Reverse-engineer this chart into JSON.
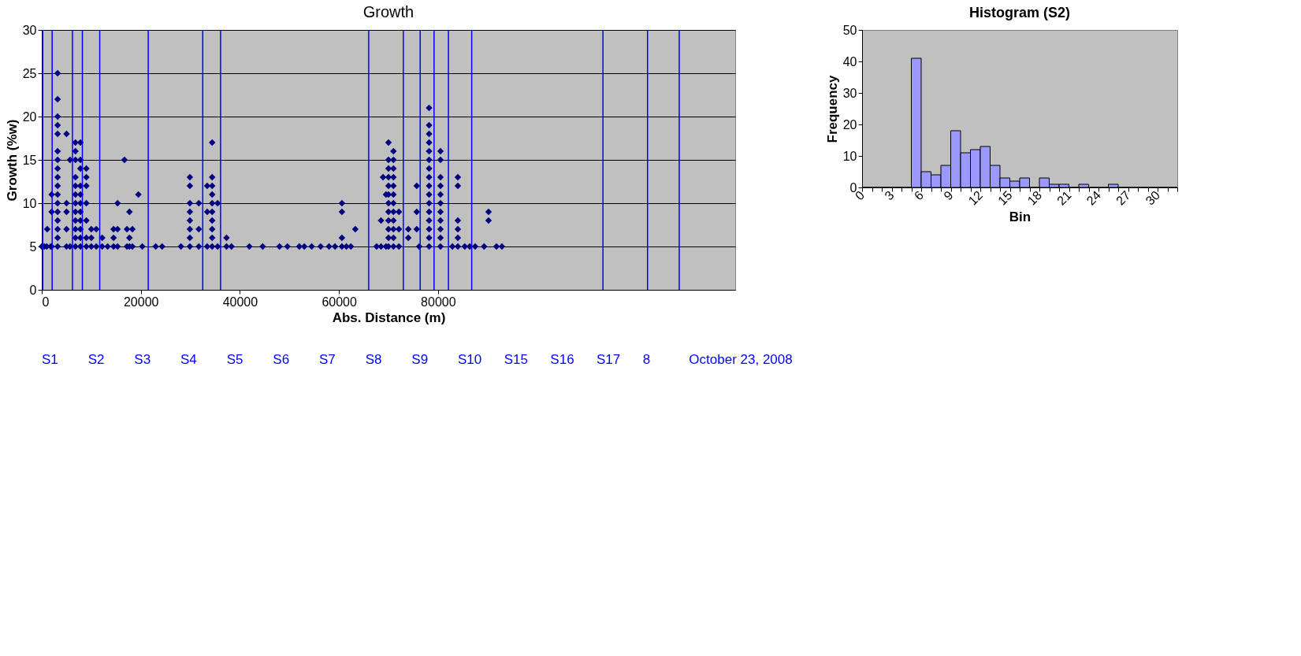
{
  "chart_data": [
    {
      "type": "scatter",
      "title": "Growth",
      "xlabel": "Abs. Distance (m)",
      "ylabel": "Growth (%w)",
      "xlim": [
        0,
        140000
      ],
      "xticks": [
        0,
        20000,
        40000,
        60000,
        80000
      ],
      "ylim": [
        0,
        30
      ],
      "yticks": [
        0,
        5,
        10,
        15,
        20,
        25,
        30
      ],
      "grid": "y",
      "legend": false,
      "marker": "diamond",
      "series": [
        {
          "color": "#000080",
          "x": [
            0,
            500,
            1000,
            1100,
            1800,
            2000,
            2000,
            2000,
            3200,
            3200,
            3200,
            3200,
            3200,
            3200,
            3200,
            3200,
            3200,
            3200,
            3200,
            3200,
            3200,
            3200,
            3200,
            3200,
            3200,
            5000,
            5000,
            5000,
            5000,
            5000,
            5700,
            5700,
            6800,
            6800,
            6800,
            6800,
            6800,
            6800,
            6800,
            6800,
            6800,
            6800,
            6800,
            6800,
            7800,
            7800,
            7800,
            7800,
            7800,
            7800,
            7800,
            7800,
            7800,
            7800,
            7800,
            9000,
            9000,
            9000,
            9000,
            9000,
            9000,
            9000,
            10000,
            10000,
            10000,
            11000,
            11000,
            12200,
            12200,
            13300,
            14500,
            14500,
            14500,
            15300,
            15300,
            15300,
            16700,
            17200,
            17200,
            17700,
            17700,
            17700,
            18300,
            18300,
            19500,
            20300,
            23000,
            24300,
            28100,
            29900,
            29900,
            29900,
            29900,
            29900,
            29900,
            29900,
            29900,
            31700,
            31700,
            31700,
            33400,
            33400,
            33400,
            34400,
            34400,
            34400,
            34400,
            34400,
            34400,
            34400,
            34400,
            34400,
            34400,
            35500,
            35500,
            37300,
            37300,
            38300,
            41900,
            44600,
            48000,
            49600,
            52000,
            53000,
            54500,
            56300,
            58000,
            59200,
            60600,
            60600,
            60600,
            60600,
            61500,
            62400,
            63300,
            67600,
            68500,
            68500,
            68900,
            69500,
            69500,
            70000,
            70000,
            70000,
            70000,
            70000,
            70000,
            70000,
            70000,
            70000,
            70000,
            70000,
            70000,
            71000,
            71000,
            71000,
            71000,
            71000,
            71000,
            71000,
            71000,
            71000,
            71000,
            71000,
            71000,
            72100,
            72100,
            72100,
            74000,
            74000,
            75700,
            75700,
            75700,
            76200,
            78200,
            78200,
            78200,
            78200,
            78200,
            78200,
            78200,
            78200,
            78200,
            78200,
            78200,
            78200,
            78200,
            78200,
            78200,
            78200,
            80500,
            80500,
            80500,
            80500,
            80500,
            80500,
            80500,
            80500,
            80500,
            80500,
            80500,
            82900,
            84000,
            84000,
            84000,
            84000,
            84000,
            84000,
            85400,
            86400,
            87500,
            89300,
            90200,
            90200,
            91800,
            92900
          ],
          "values": [
            5,
            5,
            5,
            7,
            5,
            11,
            9,
            5,
            25,
            22,
            20,
            19,
            18,
            16,
            15,
            14,
            13,
            12,
            11,
            10,
            9,
            8,
            7,
            6,
            5,
            18,
            10,
            9,
            7,
            5,
            15,
            5,
            17,
            16,
            15,
            13,
            12,
            11,
            10,
            9,
            8,
            7,
            6,
            5,
            17,
            15,
            14,
            12,
            11,
            10,
            9,
            8,
            7,
            6,
            5,
            14,
            13,
            12,
            10,
            8,
            6,
            5,
            7,
            6,
            5,
            7,
            5,
            6,
            5,
            5,
            5,
            6,
            7,
            10,
            7,
            5,
            15,
            7,
            5,
            9,
            6,
            5,
            7,
            5,
            11,
            5,
            5,
            5,
            5,
            13,
            12,
            10,
            9,
            8,
            7,
            6,
            5,
            10,
            7,
            5,
            12,
            9,
            5,
            17,
            13,
            12,
            11,
            10,
            9,
            8,
            7,
            6,
            5,
            10,
            5,
            6,
            5,
            5,
            5,
            5,
            5,
            5,
            5,
            5,
            5,
            5,
            5,
            5,
            10,
            9,
            6,
            5,
            5,
            5,
            7,
            5,
            8,
            5,
            13,
            11,
            5,
            17,
            15,
            14,
            13,
            12,
            11,
            10,
            9,
            8,
            7,
            6,
            5,
            16,
            15,
            14,
            13,
            12,
            11,
            10,
            9,
            8,
            7,
            6,
            5,
            9,
            7,
            5,
            7,
            6,
            12,
            9,
            7,
            5,
            21,
            19,
            18,
            17,
            16,
            15,
            14,
            13,
            12,
            11,
            10,
            9,
            8,
            7,
            6,
            5,
            16,
            15,
            13,
            12,
            11,
            10,
            9,
            8,
            7,
            6,
            5,
            5,
            13,
            12,
            8,
            7,
            6,
            5,
            5,
            5,
            5,
            5,
            9,
            8,
            5,
            5
          ]
        }
      ],
      "ref_lines": [
        {
          "axis": "x",
          "value": 200,
          "color": "#0000ff"
        },
        {
          "axis": "x",
          "value": 2100,
          "color": "#0000ff"
        },
        {
          "axis": "x",
          "value": 6200,
          "color": "#0000ff"
        },
        {
          "axis": "x",
          "value": 8200,
          "color": "#0000ff"
        },
        {
          "axis": "x",
          "value": 11700,
          "color": "#0000ff"
        },
        {
          "axis": "x",
          "value": 21500,
          "color": "#0000ff"
        },
        {
          "axis": "x",
          "value": 32500,
          "color": "#0000ff"
        },
        {
          "axis": "x",
          "value": 36100,
          "color": "#0000ff"
        },
        {
          "axis": "x",
          "value": 66000,
          "color": "#0000ff"
        },
        {
          "axis": "x",
          "value": 73000,
          "color": "#0000ff"
        },
        {
          "axis": "x",
          "value": 76400,
          "color": "#0000ff"
        },
        {
          "axis": "x",
          "value": 79200,
          "color": "#0000ff"
        },
        {
          "axis": "x",
          "value": 82100,
          "color": "#0000ff"
        },
        {
          "axis": "x",
          "value": 86800,
          "color": "#0000ff"
        },
        {
          "axis": "x",
          "value": 113300,
          "color": "#0000ff"
        },
        {
          "axis": "x",
          "value": 122300,
          "color": "#0000ff"
        },
        {
          "axis": "x",
          "value": 128700,
          "color": "#0000ff"
        }
      ],
      "annotations": [
        "S1",
        "S2",
        "S3",
        "S4",
        "S5",
        "S6",
        "S7",
        "S8",
        "S9",
        "S10",
        "S15",
        "S16",
        "S17",
        "8",
        "October 23, 2008"
      ]
    },
    {
      "type": "histogram",
      "title": "Histogram (S2)",
      "xlabel": "Bin",
      "ylabel": "Frequency",
      "bins": [
        0,
        1,
        2,
        3,
        4,
        5,
        6,
        7,
        8,
        9,
        10,
        11,
        12,
        13,
        14,
        15,
        16,
        17,
        18,
        19,
        20,
        21,
        22,
        23,
        24,
        25,
        26,
        27,
        28,
        29,
        30,
        31,
        32
      ],
      "values": [
        0,
        0,
        0,
        0,
        0,
        41,
        5,
        4,
        7,
        18,
        11,
        12,
        13,
        7,
        3,
        2,
        3,
        0,
        3,
        1,
        1,
        0,
        1,
        0,
        0,
        1,
        0,
        0,
        0,
        0,
        0,
        0
      ],
      "color": "#9999ff",
      "xlim": [
        0,
        32
      ],
      "xticks": [
        0,
        {
          "value": 1,
          "label": null
        },
        {
          "value": 2,
          "label": null
        },
        3,
        {
          "value": 4,
          "label": null
        },
        {
          "value": 5,
          "label": null
        },
        6,
        {
          "value": 7,
          "label": null
        },
        {
          "value": 8,
          "label": null
        },
        9,
        {
          "value": 10,
          "label": null
        },
        {
          "value": 11,
          "label": null
        },
        12,
        {
          "value": 13,
          "label": null
        },
        {
          "value": 14,
          "label": null
        },
        15,
        {
          "value": 16,
          "label": null
        },
        {
          "value": 17,
          "label": null
        },
        18,
        {
          "value": 19,
          "label": null
        },
        {
          "value": 20,
          "label": null
        },
        21,
        {
          "value": 22,
          "label": null
        },
        {
          "value": 23,
          "label": null
        },
        24,
        {
          "value": 25,
          "label": null
        },
        {
          "value": 26,
          "label": null
        },
        27,
        {
          "value": 28,
          "label": null
        },
        {
          "value": 29,
          "label": null
        },
        30,
        {
          "value": 31,
          "label": null
        },
        {
          "value": 32,
          "label": null
        }
      ],
      "ylim": [
        0,
        50
      ],
      "yticks": [
        0,
        10,
        20,
        30,
        40,
        50
      ],
      "grid": false
    }
  ]
}
